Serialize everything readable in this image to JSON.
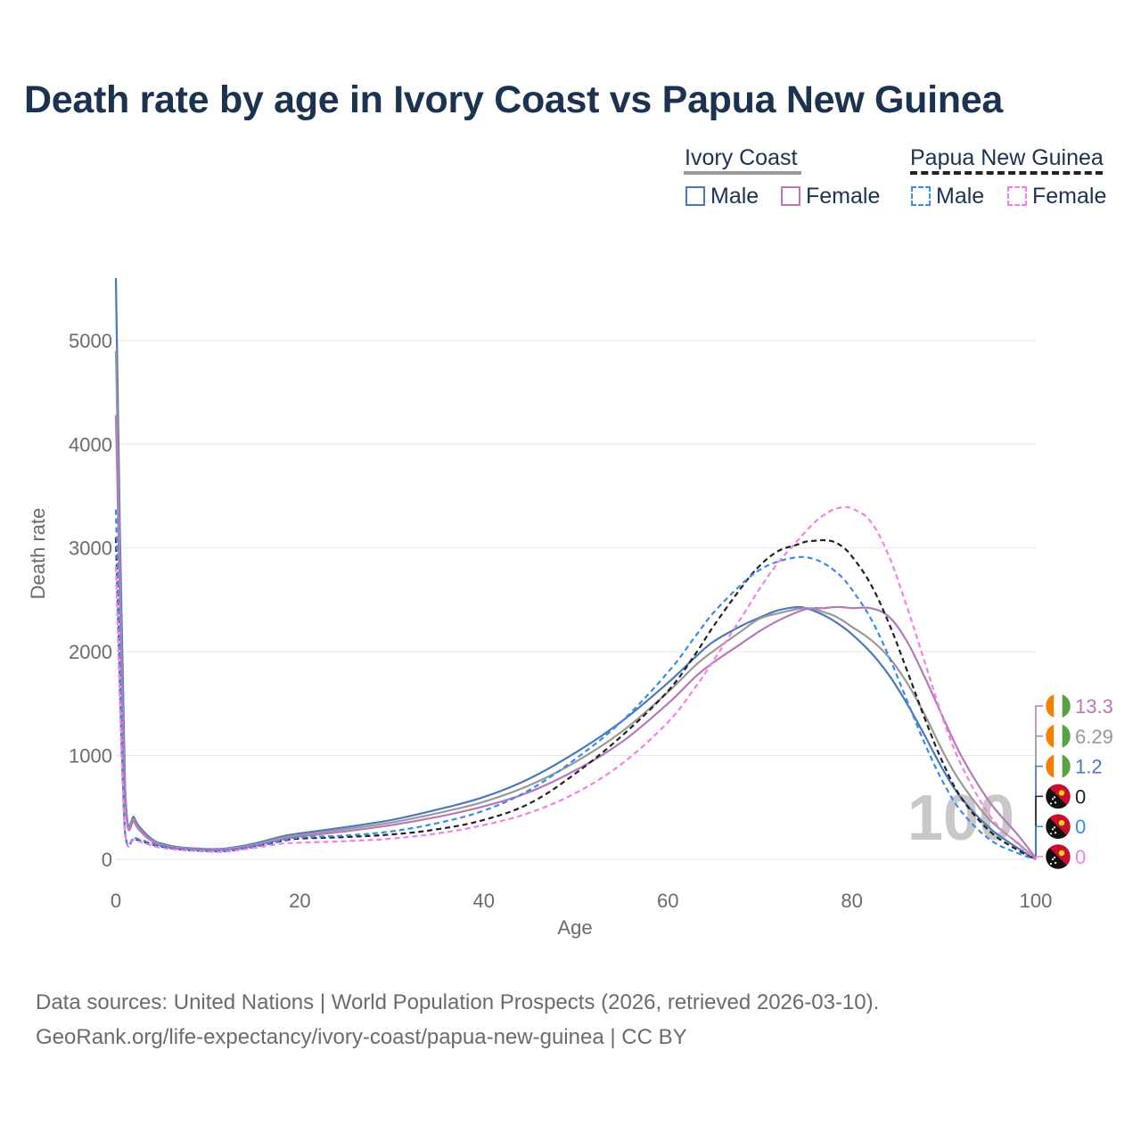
{
  "title": "Death rate by age in Ivory Coast vs Papua New Guinea",
  "legend": {
    "groups": [
      {
        "name": "Ivory Coast",
        "items": [
          {
            "label": "Male",
            "color": "#4c78c0",
            "dashed": false
          },
          {
            "label": "Female",
            "color": "#b579b8",
            "dashed": false
          }
        ]
      },
      {
        "name": "Papua New Guinea",
        "items": [
          {
            "label": "Male",
            "color": "#3a8bea",
            "dashed": true
          },
          {
            "label": "Female",
            "color": "#f47fe6",
            "dashed": true
          }
        ]
      }
    ]
  },
  "source": {
    "line1": "Data sources: United Nations | World Population Prospects (2026, retrieved 2026-03-10).",
    "line2": "GeoRank.org/life-expectancy/ivory-coast/papua-new-guinea | CC BY"
  },
  "chart_data": {
    "type": "line",
    "title": "Death rate by age in Ivory Coast vs Papua New Guinea",
    "xlabel": "Age",
    "ylabel": "Death rate",
    "xlim": [
      0,
      100
    ],
    "ylim": [
      0,
      5600
    ],
    "xticks": [
      "0",
      "20",
      "40",
      "60",
      "80",
      "100"
    ],
    "yticks": [
      "0",
      "1000",
      "2000",
      "3000",
      "4000",
      "5000"
    ],
    "x": [
      0,
      1,
      2,
      3,
      4,
      5,
      7,
      10,
      12,
      15,
      18,
      20,
      25,
      30,
      35,
      40,
      45,
      50,
      55,
      60,
      63,
      65,
      68,
      70,
      72,
      74,
      75,
      76,
      77,
      78,
      79,
      80,
      82,
      84,
      86,
      88,
      90,
      92,
      95,
      98,
      100
    ],
    "watermark": "100",
    "series": [
      {
        "name": "Ivory Coast Male",
        "color": "#4c78c0",
        "dash": false,
        "end_value": "1.2",
        "values": [
          5600,
          700,
          400,
          270,
          190,
          150,
          115,
          100,
          105,
          150,
          220,
          250,
          310,
          380,
          480,
          600,
          780,
          1030,
          1330,
          1700,
          1950,
          2100,
          2250,
          2330,
          2400,
          2430,
          2420,
          2390,
          2350,
          2300,
          2240,
          2170,
          2000,
          1780,
          1500,
          1180,
          850,
          580,
          300,
          110,
          1.2
        ]
      },
      {
        "name": "Ivory Coast Both",
        "color": "#999999",
        "dash": false,
        "end_value": "6.29",
        "values": [
          4900,
          650,
          380,
          250,
          180,
          140,
          110,
          95,
          100,
          140,
          205,
          235,
          290,
          355,
          445,
          555,
          715,
          940,
          1230,
          1610,
          1870,
          2010,
          2200,
          2320,
          2370,
          2410,
          2420,
          2410,
          2380,
          2350,
          2300,
          2240,
          2120,
          1950,
          1700,
          1380,
          1020,
          720,
          380,
          160,
          6.29
        ]
      },
      {
        "name": "Ivory Coast Female",
        "color": "#b579b8",
        "dash": false,
        "end_value": "13.3",
        "values": [
          4280,
          620,
          360,
          240,
          170,
          130,
          105,
          90,
          95,
          130,
          190,
          220,
          270,
          330,
          410,
          510,
          650,
          860,
          1130,
          1500,
          1760,
          1900,
          2080,
          2200,
          2300,
          2380,
          2410,
          2420,
          2420,
          2430,
          2430,
          2420,
          2420,
          2340,
          2100,
          1740,
          1350,
          980,
          550,
          240,
          13.3
        ]
      },
      {
        "name": "Papua New Guinea Both",
        "color": "#222222",
        "dash": true,
        "end_value": "0",
        "values": [
          3100,
          250,
          200,
          170,
          140,
          120,
          95,
          80,
          80,
          120,
          175,
          200,
          215,
          240,
          290,
          380,
          540,
          830,
          1190,
          1620,
          1980,
          2250,
          2620,
          2830,
          2970,
          3030,
          3060,
          3070,
          3075,
          3060,
          3010,
          2920,
          2660,
          2280,
          1820,
          1340,
          910,
          580,
          270,
          90,
          0
        ]
      },
      {
        "name": "Papua New Guinea Male",
        "color": "#3a8bea",
        "dash": true,
        "end_value": "0",
        "values": [
          3370,
          260,
          210,
          180,
          150,
          125,
          100,
          85,
          85,
          125,
          180,
          210,
          230,
          270,
          350,
          470,
          670,
          970,
          1330,
          1800,
          2150,
          2380,
          2650,
          2790,
          2870,
          2910,
          2910,
          2890,
          2850,
          2790,
          2710,
          2600,
          2330,
          1960,
          1530,
          1100,
          730,
          450,
          190,
          60,
          0
        ]
      },
      {
        "name": "Papua New Guinea Female",
        "color": "#f47fe6",
        "dash": true,
        "end_value": "0",
        "values": [
          2820,
          240,
          190,
          160,
          130,
          110,
          90,
          75,
          75,
          110,
          150,
          160,
          175,
          200,
          250,
          330,
          450,
          640,
          920,
          1320,
          1660,
          1920,
          2330,
          2610,
          2860,
          3060,
          3160,
          3250,
          3320,
          3370,
          3390,
          3380,
          3260,
          2930,
          2430,
          1880,
          1330,
          890,
          420,
          150,
          0
        ]
      }
    ]
  }
}
